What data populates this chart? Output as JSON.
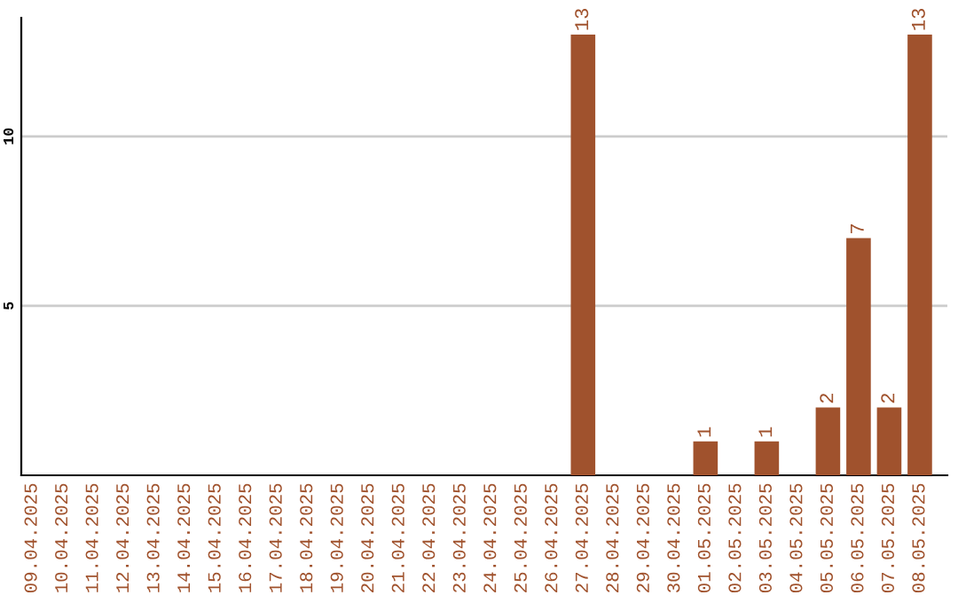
{
  "chart_data": {
    "type": "bar",
    "categories": [
      "09.04.2025",
      "10.04.2025",
      "11.04.2025",
      "12.04.2025",
      "13.04.2025",
      "14.04.2025",
      "15.04.2025",
      "16.04.2025",
      "17.04.2025",
      "18.04.2025",
      "19.04.2025",
      "20.04.2025",
      "21.04.2025",
      "22.04.2025",
      "23.04.2025",
      "24.04.2025",
      "25.04.2025",
      "26.04.2025",
      "27.04.2025",
      "28.04.2025",
      "29.04.2025",
      "30.04.2025",
      "01.05.2025",
      "02.05.2025",
      "03.05.2025",
      "04.05.2025",
      "05.05.2025",
      "06.05.2025",
      "07.05.2025",
      "08.05.2025"
    ],
    "values": [
      0,
      0,
      0,
      0,
      0,
      0,
      0,
      0,
      0,
      0,
      0,
      0,
      0,
      0,
      0,
      0,
      0,
      0,
      13,
      0,
      0,
      0,
      1,
      0,
      1,
      0,
      2,
      7,
      2,
      13
    ],
    "value_labels": [
      null,
      null,
      null,
      null,
      null,
      null,
      null,
      null,
      null,
      null,
      null,
      null,
      null,
      null,
      null,
      null,
      null,
      null,
      "13",
      null,
      null,
      null,
      "1",
      null,
      "1",
      null,
      "2",
      "7",
      "2",
      "13"
    ],
    "color": "#a0522d",
    "ylim": [
      0,
      13.5
    ],
    "yticks": [
      5,
      10
    ],
    "grid": "y",
    "legend": false
  }
}
